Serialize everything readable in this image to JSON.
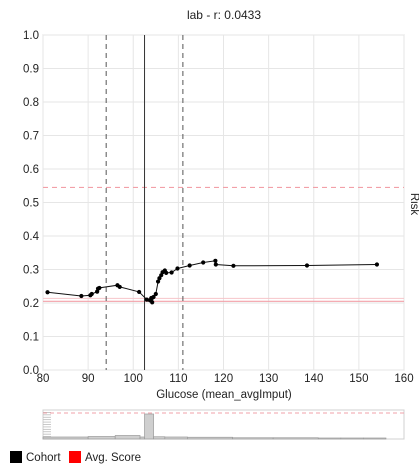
{
  "chart_data": {
    "type": "line",
    "title": "lab - r: 0.0433",
    "xlabel": "Glucose (mean_avgImput)",
    "ylabel": "Risk",
    "xlim": [
      80,
      160
    ],
    "ylim": [
      0,
      1
    ],
    "x_ticks": [
      "80",
      "90",
      "100",
      "110",
      "120",
      "130",
      "140",
      "150",
      "160"
    ],
    "y_ticks": [
      "0.0",
      "0.1",
      "0.2",
      "0.3",
      "0.4",
      "0.5",
      "0.6",
      "0.7",
      "0.8",
      "0.9",
      "1.0"
    ],
    "series": [
      {
        "name": "Cohort",
        "color": "#000000",
        "points": [
          [
            81,
            0.232
          ],
          [
            88.5,
            0.221
          ],
          [
            90.5,
            0.223
          ],
          [
            90.8,
            0.227
          ],
          [
            92,
            0.234
          ],
          [
            92.2,
            0.243
          ],
          [
            92.5,
            0.245
          ],
          [
            96.5,
            0.253
          ],
          [
            97,
            0.248
          ],
          [
            101.3,
            0.233
          ],
          [
            103,
            0.21
          ],
          [
            103.7,
            0.208
          ],
          [
            104,
            0.215
          ],
          [
            104.2,
            0.202
          ],
          [
            104.5,
            0.218
          ],
          [
            105,
            0.227
          ],
          [
            105.5,
            0.264
          ],
          [
            105.8,
            0.274
          ],
          [
            106.2,
            0.283
          ],
          [
            106.5,
            0.292
          ],
          [
            107,
            0.297
          ],
          [
            107.3,
            0.29
          ],
          [
            108.5,
            0.291
          ],
          [
            109.8,
            0.303
          ],
          [
            112.5,
            0.312
          ],
          [
            115.5,
            0.321
          ],
          [
            118.2,
            0.326
          ],
          [
            118.3,
            0.315
          ],
          [
            122.2,
            0.311
          ],
          [
            138.5,
            0.312
          ],
          [
            154,
            0.315
          ]
        ]
      }
    ],
    "reference_lines": {
      "vertical_solid": 102.5,
      "vertical_dashed": [
        94,
        111
      ],
      "avg_score_solid": 0.205,
      "avg_score_dashed": 0.545
    },
    "histogram": {
      "bins": [
        {
          "x0": 80,
          "x1": 90,
          "h": 0.08
        },
        {
          "x0": 90,
          "x1": 96,
          "h": 0.1
        },
        {
          "x0": 96,
          "x1": 101.5,
          "h": 0.14
        },
        {
          "x0": 101.5,
          "x1": 102.5,
          "h": 0.08
        },
        {
          "x0": 102.5,
          "x1": 104.5,
          "h": 1.0
        },
        {
          "x0": 104.5,
          "x1": 107,
          "h": 0.09
        },
        {
          "x0": 107,
          "x1": 112,
          "h": 0.08
        },
        {
          "x0": 112,
          "x1": 122,
          "h": 0.07
        },
        {
          "x0": 122,
          "x1": 131,
          "h": 0.05
        },
        {
          "x0": 131,
          "x1": 141,
          "h": 0.05
        },
        {
          "x0": 141,
          "x1": 146,
          "h": 0.04
        },
        {
          "x0": 146,
          "x1": 151,
          "h": 0.04
        },
        {
          "x0": 151,
          "x1": 156,
          "h": 0.04
        }
      ]
    },
    "legend": {
      "placement": "bottom-left",
      "items": [
        {
          "label": "Cohort",
          "color": "#000000"
        },
        {
          "label": "Avg. Score",
          "color": "#ff0000"
        }
      ]
    },
    "grid": true
  }
}
